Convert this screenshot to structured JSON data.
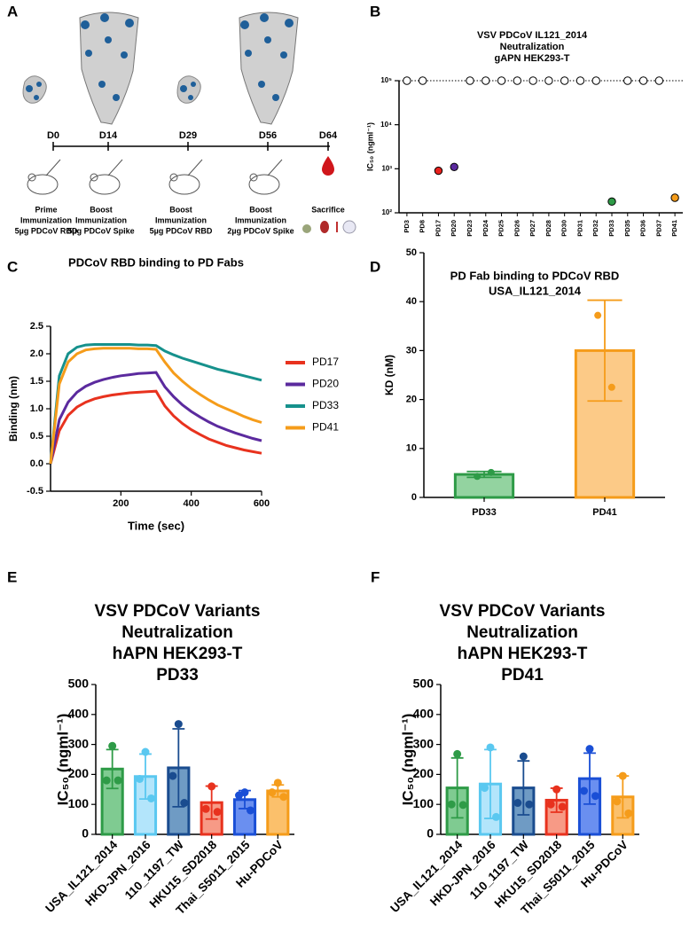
{
  "timeline": {
    "panel": "A",
    "events": [
      {
        "day": "D0",
        "color": "#1ea7e0",
        "label": [
          "Prime",
          "Immunization",
          "5µg PDCoV RBD"
        ]
      },
      {
        "day": "D14",
        "color": "#f2b417",
        "label": [
          "Boost",
          "Immunization",
          "5µg PDCoV Spike"
        ]
      },
      {
        "day": "D29",
        "color": "#1ea7e0",
        "label": [
          "Boost",
          "Immunization",
          "5µg PDCoV RBD"
        ]
      },
      {
        "day": "D56",
        "color": "#f2b417",
        "label": [
          "Boost",
          "Immunization",
          "2µg PDCoV Spike"
        ]
      },
      {
        "day": "D64",
        "color": "#e8211d",
        "label": [
          "Sacrifice"
        ]
      }
    ]
  },
  "chart_data": [
    {
      "type": "scatter",
      "panel": "B",
      "title": [
        "VSV PDCoV IL121_2014",
        "Neutralization",
        "gAPN HEK293-T"
      ],
      "y_label": "IC₅₀ (ngml⁻¹)",
      "categories": [
        "PD3",
        "PD8",
        "PD17",
        "PD20",
        "PD23",
        "PD24",
        "PD25",
        "PD26",
        "PD27",
        "PD28",
        "PD30",
        "PD31",
        "PD32",
        "PD33",
        "PD35",
        "PD36",
        "PD37",
        "PD41"
      ],
      "values": [
        100000,
        100000,
        900,
        1100,
        100000,
        100000,
        100000,
        100000,
        100000,
        100000,
        100000,
        100000,
        100000,
        180,
        100000,
        100000,
        100000,
        220
      ],
      "colors": [
        "#ffffff",
        "#ffffff",
        "#e8211d",
        "#5b2a9e",
        "#ffffff",
        "#ffffff",
        "#ffffff",
        "#ffffff",
        "#ffffff",
        "#ffffff",
        "#ffffff",
        "#ffffff",
        "#ffffff",
        "#2e9b47",
        "#ffffff",
        "#ffffff",
        "#ffffff",
        "#f59c1a"
      ],
      "log_scale": true,
      "hline": 100000,
      "ylim": [
        100,
        100000
      ],
      "yticks": [
        {
          "value": 100,
          "label": "10²"
        },
        {
          "value": 1000,
          "label": "10³"
        },
        {
          "value": 10000,
          "label": "10⁴"
        },
        {
          "value": 100000,
          "label": "10⁵"
        }
      ]
    },
    {
      "type": "line",
      "panel": "C",
      "title": [
        "PDCoV RBD binding to PD Fabs"
      ],
      "x_label": "Time (sec)",
      "y_label": "Binding (nm)",
      "x": [
        0,
        25,
        50,
        75,
        100,
        125,
        150,
        175,
        200,
        225,
        250,
        275,
        300,
        325,
        350,
        375,
        400,
        425,
        450,
        475,
        500,
        525,
        550,
        575,
        600
      ],
      "series": [
        {
          "name": "PD17",
          "color": "#e8321e",
          "values": [
            0,
            0.6,
            0.88,
            1.03,
            1.12,
            1.18,
            1.22,
            1.25,
            1.27,
            1.29,
            1.3,
            1.31,
            1.32,
            1.05,
            0.87,
            0.73,
            0.62,
            0.53,
            0.45,
            0.39,
            0.33,
            0.29,
            0.25,
            0.22,
            0.19
          ]
        },
        {
          "name": "PD20",
          "color": "#5b2a9e",
          "values": [
            0,
            0.8,
            1.12,
            1.3,
            1.41,
            1.48,
            1.53,
            1.57,
            1.6,
            1.62,
            1.64,
            1.65,
            1.66,
            1.4,
            1.22,
            1.07,
            0.95,
            0.85,
            0.76,
            0.68,
            0.62,
            0.56,
            0.51,
            0.46,
            0.42
          ]
        },
        {
          "name": "PD33",
          "color": "#16918c",
          "values": [
            0,
            1.6,
            2.0,
            2.12,
            2.16,
            2.17,
            2.17,
            2.17,
            2.17,
            2.17,
            2.16,
            2.16,
            2.15,
            2.05,
            1.98,
            1.92,
            1.87,
            1.82,
            1.77,
            1.72,
            1.68,
            1.64,
            1.6,
            1.56,
            1.52
          ]
        },
        {
          "name": "PD41",
          "color": "#f59c1a",
          "values": [
            0,
            1.45,
            1.85,
            2.0,
            2.07,
            2.09,
            2.1,
            2.1,
            2.1,
            2.1,
            2.09,
            2.09,
            2.08,
            1.85,
            1.65,
            1.5,
            1.37,
            1.26,
            1.16,
            1.07,
            1.0,
            0.93,
            0.86,
            0.8,
            0.75
          ]
        }
      ],
      "xlim": [
        0,
        600
      ],
      "xticks": [
        200,
        400,
        600
      ],
      "ylim": [
        -0.5,
        2.5
      ],
      "yticks": [
        -0.5,
        {
          "value": 0,
          "label": "0.0"
        },
        0.5,
        {
          "value": 1,
          "label": "1.0"
        },
        1.5,
        {
          "value": 2,
          "label": "2.0"
        },
        2.5
      ]
    },
    {
      "type": "bar",
      "panel": "D",
      "title": [
        "PD Fab binding to PDCoV RBD",
        "USA_IL121_2014"
      ],
      "y_label": "KD (nM)",
      "categories": [
        "PD33",
        "PD41"
      ],
      "values": [
        4.7,
        30
      ],
      "errors": [
        0.6,
        10.3
      ],
      "points": [
        [
          4.3,
          5.1
        ],
        [
          37.2,
          22.5
        ]
      ],
      "colors": [
        "#2e9b47",
        "#f59c1a"
      ],
      "fill_colors": [
        "#93d3a0",
        "#fcca87"
      ],
      "ylim": [
        0,
        50
      ],
      "yticks": [
        0,
        10,
        20,
        30,
        40,
        50
      ]
    },
    {
      "type": "bar",
      "panel": "E",
      "title": [
        "VSV PDCoV Variants",
        "Neutralization",
        "hAPN HEK293-T",
        "PD33"
      ],
      "y_label": "IC₅₀ (ngml⁻¹)",
      "categories": [
        "USA_IL121_2014",
        "HKD-JPN_2016",
        "110_1197_TW",
        "HKU15_SD2018",
        "Thai_S5011_2015",
        "Hu-PDCoV"
      ],
      "values": [
        218,
        193,
        222,
        106,
        116,
        145
      ],
      "errors": [
        65,
        75,
        130,
        55,
        30,
        20
      ],
      "points": [
        [
          295,
          180,
          180
        ],
        [
          275,
          185,
          120
        ],
        [
          368,
          195,
          105
        ],
        [
          160,
          85,
          75
        ],
        [
          140,
          130,
          80
        ],
        [
          172,
          140,
          125
        ]
      ],
      "colors": [
        "#2e9b47",
        "#5ac8f0",
        "#1a4c8f",
        "#e8321e",
        "#1a4fd6",
        "#f59c1a"
      ],
      "fill_colors": [
        "#7fcb91",
        "#b3e5fb",
        "#6f9bc4",
        "#f79a86",
        "#6a8ff0",
        "#fbc06b"
      ],
      "ylim": [
        0,
        500
      ],
      "yticks": [
        0,
        100,
        200,
        300,
        400,
        500
      ]
    },
    {
      "type": "bar",
      "panel": "F",
      "title": [
        "VSV PDCoV Variants",
        "Neutralization",
        "hAPN HEK293-T",
        "PD41"
      ],
      "y_label": "IC₅₀ (ngml⁻¹)",
      "categories": [
        "USA_IL121_2014",
        "HKD-JPN_2016",
        "110_1197_TW",
        "HKU15_SD2018",
        "Thai_S5011_2015",
        "Hu-PDCoV"
      ],
      "values": [
        155,
        168,
        155,
        114,
        186,
        125
      ],
      "errors": [
        100,
        115,
        90,
        40,
        85,
        70
      ],
      "points": [
        [
          268,
          100,
          98
        ],
        [
          290,
          155,
          58
        ],
        [
          260,
          105,
          100
        ],
        [
          150,
          100,
          92
        ],
        [
          285,
          145,
          128
        ],
        [
          195,
          110,
          70
        ]
      ],
      "colors": [
        "#2e9b47",
        "#5ac8f0",
        "#1a4c8f",
        "#e8321e",
        "#1a4fd6",
        "#f59c1a"
      ],
      "fill_colors": [
        "#7fcb91",
        "#b3e5fb",
        "#6f9bc4",
        "#f79a86",
        "#6a8ff0",
        "#fbc06b"
      ],
      "ylim": [
        0,
        500
      ],
      "yticks": [
        0,
        100,
        200,
        300,
        400,
        500
      ]
    }
  ]
}
